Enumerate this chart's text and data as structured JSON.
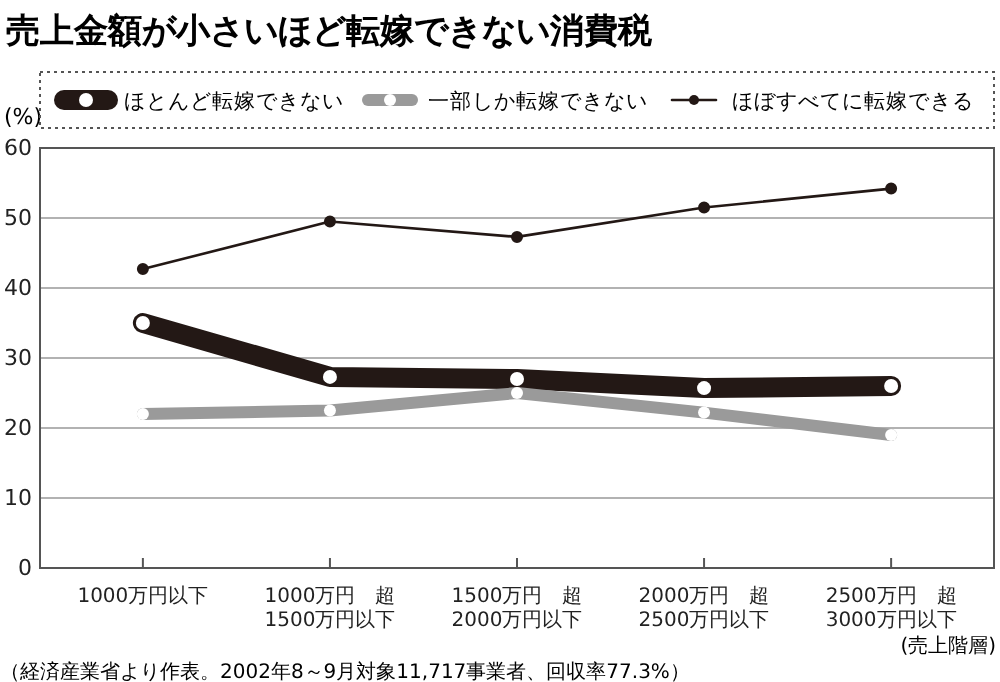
{
  "chart_data": {
    "type": "line",
    "title": "売上金額が小さいほど転嫁できない消費税",
    "ylabel": "(%)",
    "xlabel": "(売上階層)",
    "categories": [
      "1000万円以下",
      "1000万円　超\n1500万円以下",
      "1500万円　超\n2000万円以下",
      "2000万円　超\n2500万円以下",
      "2500万円　超\n3000万円以下"
    ],
    "series": [
      {
        "name": "ほとんど転嫁できない",
        "color": "#231815",
        "values": [
          35,
          27.3,
          27,
          25.7,
          26
        ]
      },
      {
        "name": "一部しか転嫁できない",
        "color": "#9a9a9a",
        "values": [
          22,
          22.5,
          25,
          22.2,
          19
        ]
      },
      {
        "name": "ほぼすべてに転嫁できる",
        "color": "#231815",
        "values": [
          42.7,
          49.5,
          47.3,
          51.5,
          54.2
        ]
      }
    ],
    "ylim": [
      0,
      60
    ],
    "yticks": [
      0,
      10,
      20,
      30,
      40,
      50,
      60
    ],
    "grid": "y",
    "legend": "top",
    "marker": "circle",
    "line_style": "solid",
    "annotations": [
      "（経済産業省より作表。2002年8～9月対象11,717事業者、回収率77.3%）"
    ]
  }
}
